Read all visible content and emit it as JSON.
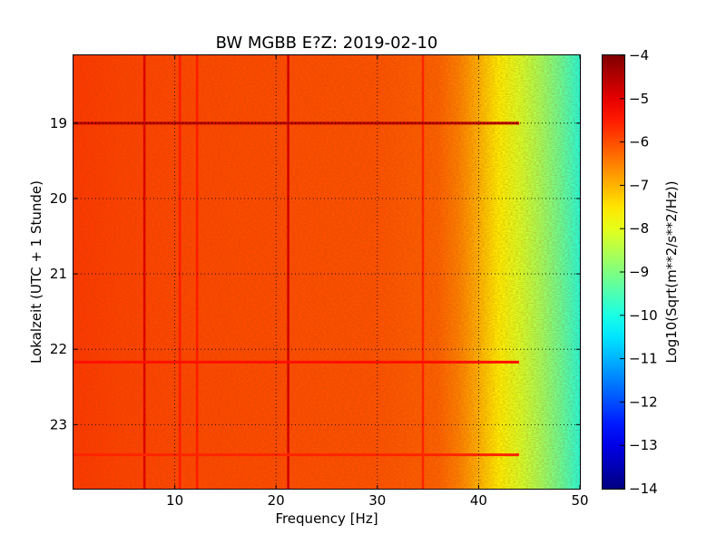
{
  "chart_data": {
    "type": "heatmap",
    "title": "BW MGBB E?Z: 2019-02-10",
    "xlabel": "Frequency [Hz]",
    "ylabel": "Lokalzeit (UTC + 1 Stunde)",
    "colorbar_label": "Log10(Sqrt(m**2/s**2/Hz))",
    "colormap": "jet",
    "xlim": [
      0,
      50
    ],
    "ylim_hours": [
      18.1,
      23.85
    ],
    "y_inverted": true,
    "x_ticks": [
      {
        "value": 10,
        "label": "10"
      },
      {
        "value": 20,
        "label": "20"
      },
      {
        "value": 30,
        "label": "30"
      },
      {
        "value": 40,
        "label": "40"
      },
      {
        "value": 50,
        "label": "50"
      }
    ],
    "y_ticks": [
      {
        "value": 19,
        "label": "19"
      },
      {
        "value": 20,
        "label": "20"
      },
      {
        "value": 21,
        "label": "21"
      },
      {
        "value": 22,
        "label": "22"
      },
      {
        "value": 23,
        "label": "23"
      }
    ],
    "colorbar_range": [
      -14,
      -4
    ],
    "colorbar_ticks": [
      {
        "value": -4,
        "label": "−4"
      },
      {
        "value": -5,
        "label": "−5"
      },
      {
        "value": -6,
        "label": "−6"
      },
      {
        "value": -7,
        "label": "−7"
      },
      {
        "value": -8,
        "label": "−8"
      },
      {
        "value": -9,
        "label": "−9"
      },
      {
        "value": -10,
        "label": "−10"
      },
      {
        "value": -11,
        "label": "−11"
      },
      {
        "value": -12,
        "label": "−12"
      },
      {
        "value": -13,
        "label": "−13"
      },
      {
        "value": -14,
        "label": "−14"
      }
    ],
    "grid": true,
    "grid_style": "dotted",
    "spectrum_profile": {
      "frequency_hz": [
        0,
        5,
        10,
        20,
        30,
        36,
        38,
        40,
        42,
        44,
        46,
        48,
        50
      ],
      "log10_amplitude": [
        -5.8,
        -5.9,
        -5.95,
        -6.0,
        -6.05,
        -6.2,
        -6.5,
        -7.0,
        -7.6,
        -8.1,
        -8.6,
        -9.2,
        -9.9
      ]
    },
    "vertical_lines": [
      {
        "frequency_hz": 7.0,
        "log10_amplitude": -4.9
      },
      {
        "frequency_hz": 21.2,
        "log10_amplitude": -4.8
      },
      {
        "frequency_hz": 10.5,
        "log10_amplitude": -5.5
      },
      {
        "frequency_hz": 12.2,
        "log10_amplitude": -5.5
      },
      {
        "frequency_hz": 34.5,
        "log10_amplitude": -5.6
      }
    ],
    "horizontal_lines": [
      {
        "hour": 19.0,
        "log10_amplitude": -4.6
      },
      {
        "hour": 22.17,
        "log10_amplitude": -5.4
      },
      {
        "hour": 23.4,
        "log10_amplitude": -5.6
      }
    ],
    "colors": {
      "frame": "#000000",
      "background": "#ffffff"
    }
  }
}
